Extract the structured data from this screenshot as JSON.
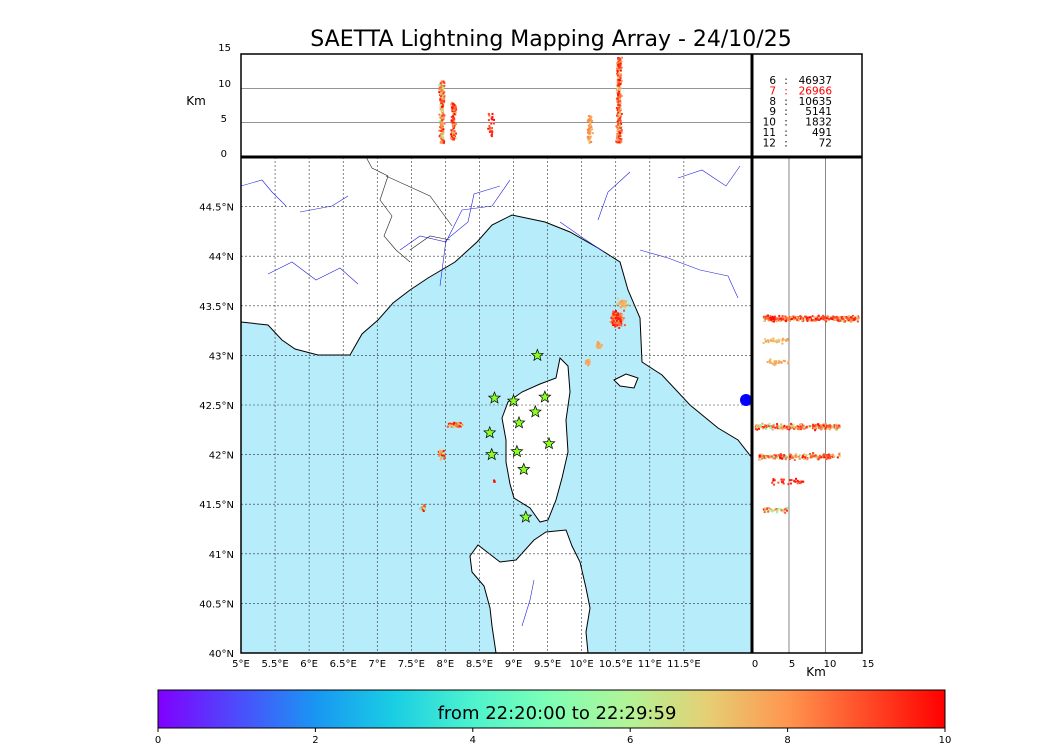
{
  "chart_data": {
    "type": "scatter",
    "title": "SAETTA Lightning Mapping Array - 24/10/25",
    "map": {
      "lon_range": [
        5,
        12.5
      ],
      "lat_range": [
        40,
        45
      ],
      "lon_ticks": [
        "5°E",
        "5.5°E",
        "6°E",
        "6.5°E",
        "7°E",
        "7.5°E",
        "8°E",
        "8.5°E",
        "9°E",
        "9.5°E",
        "10°E",
        "10.5°E",
        "11°E",
        "11.5°E"
      ],
      "lat_ticks": [
        "40°N",
        "40.5°N",
        "41°N",
        "41.5°N",
        "42°N",
        "42.5°N",
        "43°N",
        "43.5°N",
        "44°N",
        "44.5°N"
      ],
      "grid": true,
      "sea_color": "#b7ecfb",
      "stations": [
        {
          "lon": 9.35,
          "lat": 43.0
        },
        {
          "lon": 8.72,
          "lat": 42.57
        },
        {
          "lon": 9.0,
          "lat": 42.54
        },
        {
          "lon": 9.46,
          "lat": 42.58
        },
        {
          "lon": 9.32,
          "lat": 42.43
        },
        {
          "lon": 9.08,
          "lat": 42.32
        },
        {
          "lon": 8.65,
          "lat": 42.22
        },
        {
          "lon": 9.52,
          "lat": 42.11
        },
        {
          "lon": 8.68,
          "lat": 42.0
        },
        {
          "lon": 9.05,
          "lat": 42.03
        },
        {
          "lon": 9.15,
          "lat": 41.85
        },
        {
          "lon": 9.18,
          "lat": 41.37
        }
      ],
      "clusters": [
        {
          "lon": 10.52,
          "lat": 43.37,
          "dlon": 0.12,
          "dlat": 0.1,
          "n": 160,
          "t": [
            6.5,
            10
          ]
        },
        {
          "lon": 10.6,
          "lat": 43.52,
          "dlon": 0.1,
          "dlat": 0.06,
          "n": 40,
          "t": [
            6.5,
            8
          ]
        },
        {
          "lon": 10.25,
          "lat": 43.1,
          "dlon": 0.06,
          "dlat": 0.05,
          "n": 25,
          "t": [
            7,
            8
          ]
        },
        {
          "lon": 10.1,
          "lat": 42.93,
          "dlon": 0.05,
          "dlat": 0.04,
          "n": 18,
          "t": [
            7,
            8
          ]
        },
        {
          "lon": 8.15,
          "lat": 42.3,
          "dlon": 0.15,
          "dlat": 0.03,
          "n": 90,
          "t": [
            4,
            10
          ]
        },
        {
          "lon": 7.95,
          "lat": 42.0,
          "dlon": 0.06,
          "dlat": 0.07,
          "n": 60,
          "t": [
            4,
            10
          ]
        },
        {
          "lon": 7.67,
          "lat": 41.46,
          "dlon": 0.05,
          "dlat": 0.05,
          "n": 30,
          "t": [
            3.5,
            10
          ]
        },
        {
          "lon": 8.72,
          "lat": 41.73,
          "dlon": 0.02,
          "dlat": 0.02,
          "n": 5,
          "t": [
            8,
            10
          ]
        }
      ]
    },
    "altitude_time": {
      "ylabel": "Km",
      "ylim": [
        0,
        15
      ],
      "yticks": [
        "0",
        "5",
        "10",
        "15"
      ],
      "columns": [
        {
          "lon": 7.95,
          "zmin": 2,
          "zmax": 11,
          "n": 200,
          "t": [
            4,
            10
          ]
        },
        {
          "lon": 8.12,
          "zmin": 2.5,
          "zmax": 8,
          "n": 120,
          "t": [
            6.5,
            10
          ]
        },
        {
          "lon": 8.67,
          "zmin": 3,
          "zmax": 6.5,
          "n": 25,
          "t": [
            8,
            10
          ]
        },
        {
          "lon": 10.12,
          "zmin": 2,
          "zmax": 6,
          "n": 60,
          "t": [
            6.5,
            8.5
          ]
        },
        {
          "lon": 10.55,
          "zmin": 2,
          "zmax": 14.5,
          "n": 280,
          "t": [
            6,
            10
          ]
        }
      ]
    },
    "altitude_lat": {
      "xlabel": "Km",
      "xlim": [
        0,
        15
      ],
      "xticks": [
        "0",
        "5",
        "10",
        "15"
      ],
      "rows": [
        {
          "lat": 43.37,
          "zmin": 1.5,
          "zmax": 14.5,
          "n": 300,
          "t": [
            6,
            10
          ]
        },
        {
          "lat": 43.15,
          "zmin": 1.5,
          "zmax": 5,
          "n": 30,
          "t": [
            6.5,
            8
          ]
        },
        {
          "lat": 42.93,
          "zmin": 2,
          "zmax": 5,
          "n": 25,
          "t": [
            6.5,
            8
          ]
        },
        {
          "lat": 42.28,
          "zmin": 0.5,
          "zmax": 12,
          "n": 220,
          "t": [
            4,
            10
          ]
        },
        {
          "lat": 41.98,
          "zmin": 1,
          "zmax": 12,
          "n": 180,
          "t": [
            4,
            10
          ]
        },
        {
          "lat": 41.73,
          "zmin": 2.5,
          "zmax": 7,
          "n": 30,
          "t": [
            8,
            10
          ]
        },
        {
          "lat": 41.44,
          "zmin": 1.5,
          "zmax": 5,
          "n": 35,
          "t": [
            3.5,
            10
          ]
        }
      ]
    },
    "stats": [
      {
        "stations": "6",
        "sep": ":",
        "count": "46937",
        "color": "#000000"
      },
      {
        "stations": "7",
        "sep": ":",
        "count": "26966",
        "color": "#ff0000"
      },
      {
        "stations": "8",
        "sep": ":",
        "count": "10635",
        "color": "#000000"
      },
      {
        "stations": "9",
        "sep": ":",
        "count": "5141",
        "color": "#000000"
      },
      {
        "stations": "10",
        "sep": ":",
        "count": "1832",
        "color": "#000000"
      },
      {
        "stations": "11",
        "sep": ":",
        "count": "491",
        "color": "#000000"
      },
      {
        "stations": "12",
        "sep": ":",
        "count": "72",
        "color": "#000000"
      }
    ],
    "colorbar": {
      "label": "from 22:20:00 to 22:29:59",
      "range": [
        0,
        10
      ],
      "ticks": [
        "0",
        "2",
        "4",
        "6",
        "8",
        "10"
      ],
      "colormap": "rainbow"
    }
  }
}
